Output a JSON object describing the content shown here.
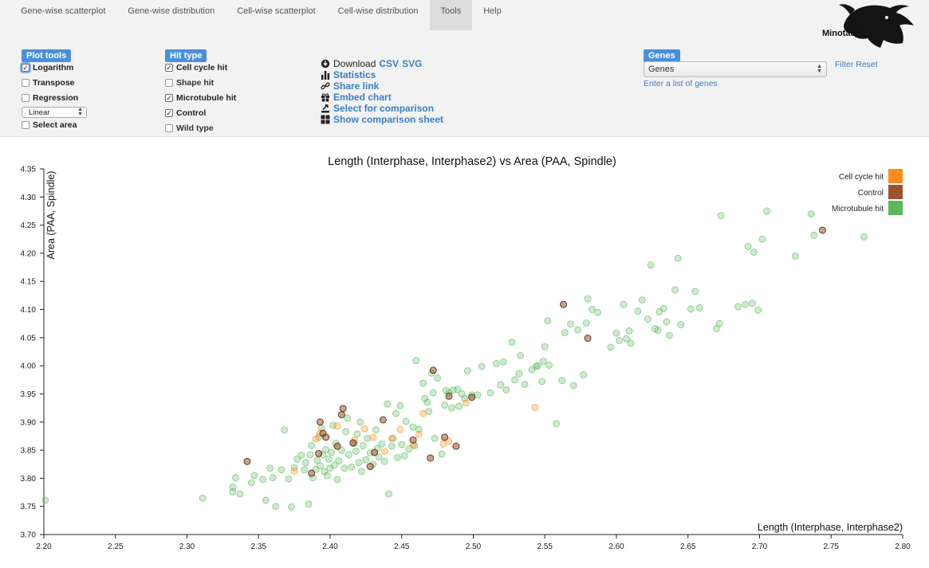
{
  "nav": {
    "tabs": [
      "Gene-wise scatterplot",
      "Gene-wise distribution",
      "Cell-wise scatterplot",
      "Cell-wise distribution",
      "Tools",
      "Help"
    ],
    "active": "Tools"
  },
  "logo": {
    "text": "Minotaur"
  },
  "plot_tools": {
    "header": "Plot tools",
    "logarithm": "Logarithm",
    "transpose": "Transpose",
    "regression": "Regression",
    "scale_value": "Linear",
    "select_area": "Select area"
  },
  "hit_type": {
    "header": "Hit type",
    "items": [
      {
        "label": "Cell cycle hit",
        "checked": true
      },
      {
        "label": "Shape hit",
        "checked": false
      },
      {
        "label": "Microtubule hit",
        "checked": true
      },
      {
        "label": "Control",
        "checked": true
      },
      {
        "label": "Wild type",
        "checked": false
      }
    ]
  },
  "tools": {
    "download_label": "Download",
    "csv": "CSV",
    "svg": "SVG",
    "statistics": "Statistics",
    "share_link": "Share link",
    "embed_chart": "Embed chart",
    "select_for_comparison": "Select for comparison",
    "show_comparison_sheet": "Show comparison sheet"
  },
  "genes": {
    "header": "Genes",
    "select_value": "Genes",
    "filter_reset": "Filter Reset",
    "enter_list": "Enter a list of genes"
  },
  "colors": {
    "cell_cycle": "#ff8c1a",
    "control": "#a0522d",
    "microtubule": "#5cb85c",
    "accent": "#4a90d9"
  },
  "chart_data": {
    "type": "scatter",
    "title": "Length (Interphase, Interphase2) vs Area (PAA, Spindle)",
    "xlabel": "Length (Interphase, Interphase2)",
    "ylabel": "Area (PAA, Spindle)",
    "xlim": [
      2.2,
      2.8
    ],
    "ylim": [
      3.7,
      4.35
    ],
    "xticks": [
      "2.20",
      "2.25",
      "2.30",
      "2.35",
      "2.40",
      "2.45",
      "2.50",
      "2.55",
      "2.60",
      "2.65",
      "2.70",
      "2.75",
      "2.80"
    ],
    "yticks": [
      "3.70",
      "3.75",
      "3.80",
      "3.85",
      "3.90",
      "3.95",
      "4.00",
      "4.05",
      "4.10",
      "4.15",
      "4.20",
      "4.25",
      "4.30",
      "4.35"
    ],
    "grid": false,
    "legend_position": "top-right",
    "series": [
      {
        "name": "Microtubule hit",
        "color": "#5cb85c",
        "points": [
          [
            2.201,
            3.761
          ],
          [
            2.311,
            3.765
          ],
          [
            2.332,
            3.784
          ],
          [
            2.332,
            3.776
          ],
          [
            2.334,
            3.801
          ],
          [
            2.337,
            3.772
          ],
          [
            2.345,
            3.792
          ],
          [
            2.347,
            3.805
          ],
          [
            2.353,
            3.798
          ],
          [
            2.355,
            3.761
          ],
          [
            2.358,
            3.818
          ],
          [
            2.36,
            3.801
          ],
          [
            2.362,
            3.75
          ],
          [
            2.366,
            3.815
          ],
          [
            2.368,
            3.886
          ],
          [
            2.371,
            3.799
          ],
          [
            2.373,
            3.749
          ],
          [
            2.375,
            3.819
          ],
          [
            2.377,
            3.834
          ],
          [
            2.38,
            3.841
          ],
          [
            2.382,
            3.815
          ],
          [
            2.383,
            3.828
          ],
          [
            2.385,
            3.754
          ],
          [
            2.386,
            3.842
          ],
          [
            2.387,
            3.858
          ],
          [
            2.388,
            3.801
          ],
          [
            2.39,
            3.816
          ],
          [
            2.391,
            3.832
          ],
          [
            2.392,
            3.873
          ],
          [
            2.393,
            3.822
          ],
          [
            2.394,
            3.889
          ],
          [
            2.395,
            3.842
          ],
          [
            2.396,
            3.812
          ],
          [
            2.397,
            3.851
          ],
          [
            2.398,
            3.805
          ],
          [
            2.399,
            3.834
          ],
          [
            2.4,
            3.818
          ],
          [
            2.401,
            3.846
          ],
          [
            2.402,
            3.894
          ],
          [
            2.403,
            3.823
          ],
          [
            2.404,
            3.862
          ],
          [
            2.405,
            3.798
          ],
          [
            2.406,
            3.831
          ],
          [
            2.408,
            3.85
          ],
          [
            2.41,
            3.818
          ],
          [
            2.411,
            3.883
          ],
          [
            2.412,
            3.907
          ],
          [
            2.413,
            3.842
          ],
          [
            2.415,
            3.82
          ],
          [
            2.417,
            3.862
          ],
          [
            2.418,
            3.848
          ],
          [
            2.419,
            3.879
          ],
          [
            2.42,
            3.828
          ],
          [
            2.421,
            3.9
          ],
          [
            2.422,
            3.812
          ],
          [
            2.423,
            3.858
          ],
          [
            2.425,
            3.833
          ],
          [
            2.426,
            3.871
          ],
          [
            2.428,
            3.845
          ],
          [
            2.43,
            3.825
          ],
          [
            2.432,
            3.886
          ],
          [
            2.433,
            3.853
          ],
          [
            2.434,
            3.838
          ],
          [
            2.436,
            3.861
          ],
          [
            2.438,
            3.83
          ],
          [
            2.44,
            3.932
          ],
          [
            2.441,
            3.772
          ],
          [
            2.443,
            3.857
          ],
          [
            2.444,
            3.871
          ],
          [
            2.446,
            3.915
          ],
          [
            2.447,
            3.837
          ],
          [
            2.449,
            3.929
          ],
          [
            2.45,
            3.86
          ],
          [
            2.452,
            3.84
          ],
          [
            2.453,
            3.901
          ],
          [
            2.455,
            3.852
          ],
          [
            2.458,
            3.891
          ],
          [
            2.459,
            3.858
          ],
          [
            2.46,
            4.009
          ],
          [
            2.462,
            3.887
          ],
          [
            2.465,
            3.969
          ],
          [
            2.466,
            3.942
          ],
          [
            2.468,
            3.935
          ],
          [
            2.469,
            3.919
          ],
          [
            2.471,
            3.987
          ],
          [
            2.472,
            3.952
          ],
          [
            2.473,
            3.871
          ],
          [
            2.475,
            3.978
          ],
          [
            2.478,
            3.843
          ],
          [
            2.48,
            3.93
          ],
          [
            2.481,
            3.956
          ],
          [
            2.483,
            3.952
          ],
          [
            2.485,
            3.925
          ],
          [
            2.486,
            3.957
          ],
          [
            2.489,
            3.958
          ],
          [
            2.49,
            3.928
          ],
          [
            2.492,
            3.95
          ],
          [
            2.494,
            3.942
          ],
          [
            2.496,
            3.991
          ],
          [
            2.499,
            3.948
          ],
          [
            2.503,
            3.948
          ],
          [
            2.506,
            3.999
          ],
          [
            2.512,
            3.952
          ],
          [
            2.516,
            4.004
          ],
          [
            2.519,
            3.966
          ],
          [
            2.521,
            4.007
          ],
          [
            2.523,
            3.957
          ],
          [
            2.527,
            4.042
          ],
          [
            2.529,
            3.975
          ],
          [
            2.532,
            3.986
          ],
          [
            2.533,
            4.018
          ],
          [
            2.536,
            3.967
          ],
          [
            2.541,
            3.993
          ],
          [
            2.544,
            3.999
          ],
          [
            2.545,
            4.0
          ],
          [
            2.548,
            3.972
          ],
          [
            2.549,
            4.008
          ],
          [
            2.55,
            4.034
          ],
          [
            2.552,
            4.08
          ],
          [
            2.553,
            4.001
          ],
          [
            2.558,
            3.897
          ],
          [
            2.562,
            3.974
          ],
          [
            2.564,
            4.059
          ],
          [
            2.568,
            4.074
          ],
          [
            2.57,
            3.965
          ],
          [
            2.573,
            4.064
          ],
          [
            2.577,
            3.984
          ],
          [
            2.579,
            4.076
          ],
          [
            2.58,
            4.119
          ],
          [
            2.583,
            4.1
          ],
          [
            2.587,
            4.095
          ],
          [
            2.596,
            4.033
          ],
          [
            2.6,
            4.058
          ],
          [
            2.602,
            4.045
          ],
          [
            2.605,
            4.109
          ],
          [
            2.607,
            4.048
          ],
          [
            2.609,
            4.062
          ],
          [
            2.61,
            4.04
          ],
          [
            2.615,
            4.097
          ],
          [
            2.618,
            4.117
          ],
          [
            2.622,
            4.083
          ],
          [
            2.624,
            4.179
          ],
          [
            2.627,
            4.066
          ],
          [
            2.629,
            4.063
          ],
          [
            2.63,
            4.096
          ],
          [
            2.633,
            4.102
          ],
          [
            2.635,
            4.078
          ],
          [
            2.637,
            4.054
          ],
          [
            2.641,
            4.135
          ],
          [
            2.643,
            4.191
          ],
          [
            2.645,
            4.073
          ],
          [
            2.652,
            4.101
          ],
          [
            2.655,
            4.132
          ],
          [
            2.658,
            4.103
          ],
          [
            2.67,
            4.066
          ],
          [
            2.672,
            4.075
          ],
          [
            2.673,
            4.267
          ],
          [
            2.685,
            4.105
          ],
          [
            2.69,
            4.109
          ],
          [
            2.692,
            4.212
          ],
          [
            2.695,
            4.111
          ],
          [
            2.696,
            4.202
          ],
          [
            2.699,
            4.099
          ],
          [
            2.702,
            4.225
          ],
          [
            2.705,
            4.275
          ],
          [
            2.725,
            4.195
          ],
          [
            2.736,
            4.27
          ],
          [
            2.738,
            4.232
          ],
          [
            2.773,
            4.229
          ]
        ]
      },
      {
        "name": "Cell cycle hit",
        "color": "#ff8c1a",
        "points": [
          [
            2.375,
            3.813
          ],
          [
            2.39,
            3.87
          ],
          [
            2.393,
            3.88
          ],
          [
            2.405,
            3.893
          ],
          [
            2.417,
            3.868
          ],
          [
            2.424,
            3.888
          ],
          [
            2.43,
            3.873
          ],
          [
            2.438,
            3.848
          ],
          [
            2.443,
            3.871
          ],
          [
            2.449,
            3.887
          ],
          [
            2.458,
            3.859
          ],
          [
            2.462,
            3.878
          ],
          [
            2.465,
            3.915
          ],
          [
            2.479,
            3.861
          ],
          [
            2.483,
            3.866
          ],
          [
            2.495,
            3.934
          ],
          [
            2.543,
            3.926
          ]
        ]
      },
      {
        "name": "Control",
        "color": "#a0522d",
        "points": [
          [
            2.342,
            3.83
          ],
          [
            2.387,
            3.809
          ],
          [
            2.392,
            3.844
          ],
          [
            2.393,
            3.9
          ],
          [
            2.395,
            3.88
          ],
          [
            2.397,
            3.873
          ],
          [
            2.405,
            3.857
          ],
          [
            2.408,
            3.913
          ],
          [
            2.409,
            3.924
          ],
          [
            2.416,
            3.863
          ],
          [
            2.428,
            3.821
          ],
          [
            2.431,
            3.846
          ],
          [
            2.437,
            3.904
          ],
          [
            2.458,
            3.868
          ],
          [
            2.47,
            3.836
          ],
          [
            2.472,
            3.992
          ],
          [
            2.48,
            3.873
          ],
          [
            2.483,
            3.946
          ],
          [
            2.488,
            3.857
          ],
          [
            2.499,
            3.944
          ],
          [
            2.563,
            4.109
          ],
          [
            2.58,
            4.049
          ],
          [
            2.744,
            4.241
          ]
        ]
      }
    ]
  }
}
